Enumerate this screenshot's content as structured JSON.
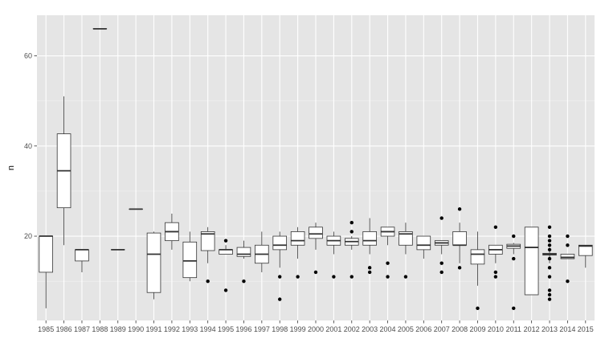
{
  "chart_data": {
    "type": "boxplot",
    "title": "",
    "xlabel": "",
    "ylabel": "n",
    "ylim": [
      1.3,
      69
    ],
    "yticks": [
      20,
      40,
      60
    ],
    "grid": true,
    "legend": "none",
    "colors": {
      "panel": "#e5e5e5",
      "grid_major": "#ffffff",
      "grid_minor": "#f2f2f2",
      "box_fill": "#ffffff",
      "box_line": "#333333",
      "tick_text": "#4d4d4d"
    },
    "categories": [
      "1985",
      "1986",
      "1987",
      "1988",
      "1989",
      "1990",
      "1991",
      "1992",
      "1993",
      "1994",
      "1995",
      "1996",
      "1997",
      "1998",
      "1999",
      "2000",
      "2001",
      "2002",
      "2003",
      "2004",
      "2005",
      "2006",
      "2007",
      "2008",
      "2009",
      "2010",
      "2011",
      "2012",
      "2013",
      "2014",
      "2015"
    ],
    "boxes": [
      {
        "lo": 4,
        "q1": 12,
        "med": 20,
        "q3": 20,
        "hi": 20,
        "out": []
      },
      {
        "lo": 18,
        "q1": 26.3,
        "med": 34.5,
        "q3": 42.7,
        "hi": 51,
        "out": []
      },
      {
        "lo": 12,
        "q1": 14.5,
        "med": 17,
        "q3": 17,
        "hi": 17,
        "out": []
      },
      {
        "lo": 66,
        "q1": 66,
        "med": 66,
        "q3": 66,
        "hi": 66,
        "out": []
      },
      {
        "lo": 17,
        "q1": 17,
        "med": 17,
        "q3": 17,
        "hi": 17,
        "out": []
      },
      {
        "lo": 26,
        "q1": 26,
        "med": 26,
        "q3": 26,
        "hi": 26,
        "out": []
      },
      {
        "lo": 6,
        "q1": 7.5,
        "med": 16,
        "q3": 20.7,
        "hi": 21,
        "out": []
      },
      {
        "lo": 17,
        "q1": 19,
        "med": 21,
        "q3": 23,
        "hi": 25,
        "out": []
      },
      {
        "lo": 10,
        "q1": 10.8,
        "med": 14.5,
        "q3": 18.7,
        "hi": 21,
        "out": []
      },
      {
        "lo": 14,
        "q1": 16.8,
        "med": 20.5,
        "q3": 21,
        "hi": 22,
        "out": [
          10
        ]
      },
      {
        "lo": 16,
        "q1": 16,
        "med": 17,
        "q3": 17,
        "hi": 18,
        "out": [
          8,
          19
        ]
      },
      {
        "lo": 15,
        "q1": 15.5,
        "med": 16,
        "q3": 17.5,
        "hi": 19,
        "out": [
          10
        ]
      },
      {
        "lo": 12,
        "q1": 14,
        "med": 16,
        "q3": 18,
        "hi": 21,
        "out": []
      },
      {
        "lo": 13,
        "q1": 17,
        "med": 18,
        "q3": 20,
        "hi": 21,
        "out": [
          6,
          11
        ]
      },
      {
        "lo": 15,
        "q1": 18,
        "med": 19,
        "q3": 21,
        "hi": 22,
        "out": [
          11
        ]
      },
      {
        "lo": 17,
        "q1": 19.5,
        "med": 20.5,
        "q3": 22,
        "hi": 23,
        "out": [
          12
        ]
      },
      {
        "lo": 16,
        "q1": 18,
        "med": 19,
        "q3": 20,
        "hi": 21,
        "out": [
          11
        ]
      },
      {
        "lo": 17,
        "q1": 18,
        "med": 18.8,
        "q3": 19.5,
        "hi": 20,
        "out": [
          11,
          21,
          23
        ]
      },
      {
        "lo": 16,
        "q1": 18,
        "med": 19,
        "q3": 21,
        "hi": 24,
        "out": [
          12,
          13
        ]
      },
      {
        "lo": 18,
        "q1": 20,
        "med": 21,
        "q3": 22,
        "hi": 22,
        "out": [
          11,
          14
        ]
      },
      {
        "lo": 16,
        "q1": 18,
        "med": 20.5,
        "q3": 21,
        "hi": 23,
        "out": [
          11
        ]
      },
      {
        "lo": 15,
        "q1": 17,
        "med": 18,
        "q3": 20,
        "hi": 20,
        "out": []
      },
      {
        "lo": 16,
        "q1": 18,
        "med": 18.5,
        "q3": 19,
        "hi": 19,
        "out": [
          12,
          14,
          24
        ]
      },
      {
        "lo": 14,
        "q1": 18,
        "med": 18,
        "q3": 21,
        "hi": 23,
        "out": [
          13,
          26
        ]
      },
      {
        "lo": 9,
        "q1": 13.8,
        "med": 16,
        "q3": 17,
        "hi": 21,
        "out": [
          4
        ]
      },
      {
        "lo": 14,
        "q1": 16,
        "med": 17,
        "q3": 18,
        "hi": 18,
        "out": [
          11,
          12,
          22
        ]
      },
      {
        "lo": 16,
        "q1": 17.3,
        "med": 17.8,
        "q3": 18.2,
        "hi": 18.5,
        "out": [
          4,
          15,
          20
        ]
      },
      {
        "lo": 7,
        "q1": 7,
        "med": 17.5,
        "q3": 22,
        "hi": 22,
        "out": []
      },
      {
        "lo": 14,
        "q1": 15.8,
        "med": 16,
        "q3": 16.2,
        "hi": 17,
        "out": [
          6,
          7,
          8,
          11,
          13,
          15,
          17,
          18,
          19,
          20,
          22
        ]
      },
      {
        "lo": 15,
        "q1": 15,
        "med": 15.3,
        "q3": 16,
        "hi": 16,
        "out": [
          10,
          18,
          20
        ]
      },
      {
        "lo": 13,
        "q1": 15.7,
        "med": 17.8,
        "q3": 18,
        "hi": 18,
        "out": []
      }
    ]
  }
}
